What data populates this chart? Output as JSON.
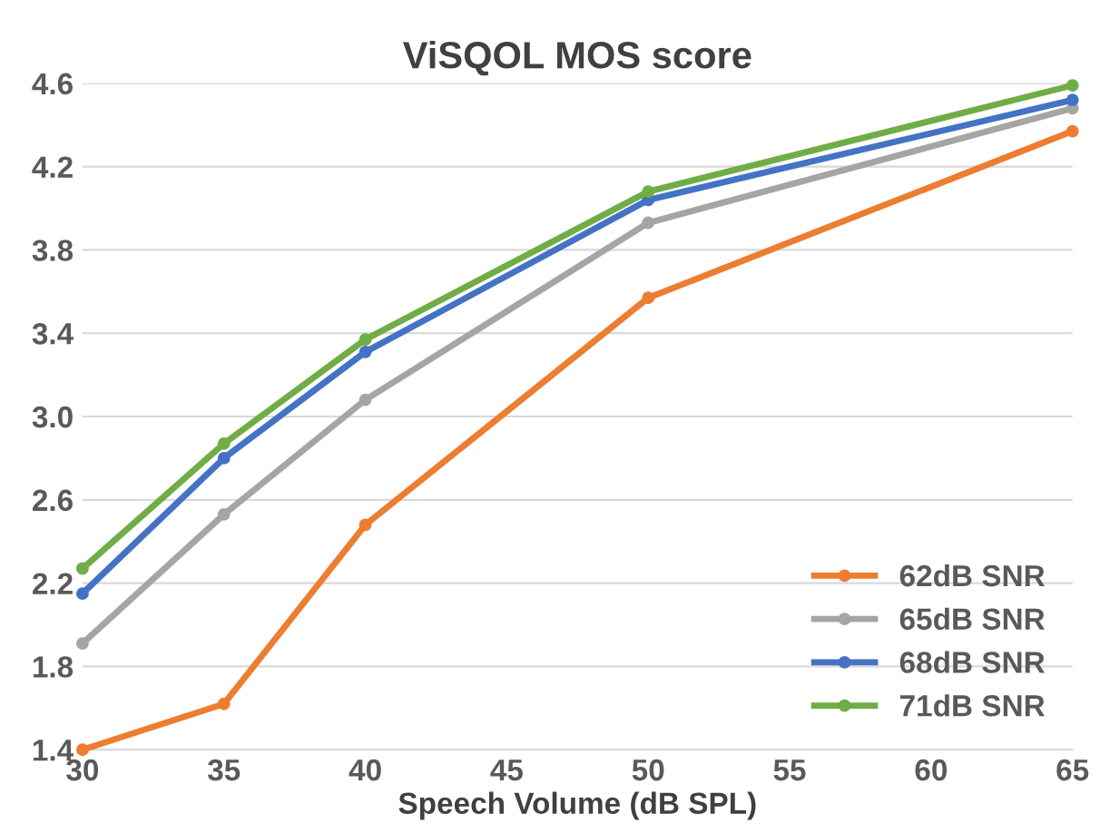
{
  "chart_data": {
    "type": "line",
    "title": "ViSQOL MOS score",
    "xlabel": "Speech Volume (dB SPL)",
    "x": [
      30,
      35,
      40,
      50,
      65
    ],
    "series": [
      {
        "name": "62dB SNR",
        "color": "#ed7d31",
        "values": [
          1.4,
          1.62,
          2.48,
          3.57,
          4.37
        ]
      },
      {
        "name": "65dB SNR",
        "color": "#a5a5a5",
        "values": [
          1.91,
          2.53,
          3.08,
          3.93,
          4.48
        ]
      },
      {
        "name": "68dB SNR",
        "color": "#4472c4",
        "values": [
          2.15,
          2.8,
          3.31,
          4.04,
          4.52
        ]
      },
      {
        "name": "71dB SNR",
        "color": "#70ad47",
        "values": [
          2.27,
          2.87,
          3.37,
          4.08,
          4.59
        ]
      }
    ],
    "xlim": [
      30,
      65
    ],
    "xticks": [
      30,
      35,
      40,
      45,
      50,
      55,
      60,
      65
    ],
    "ylim": [
      1.4,
      4.6
    ],
    "yticks": [
      1.4,
      1.8,
      2.2,
      2.6,
      {
        "value": 3,
        "label": "3.0"
      },
      3.4,
      3.8,
      4.2,
      4.6
    ],
    "grid": "y",
    "legend": "bottom right",
    "marker": "circle",
    "line_style": "solid"
  }
}
